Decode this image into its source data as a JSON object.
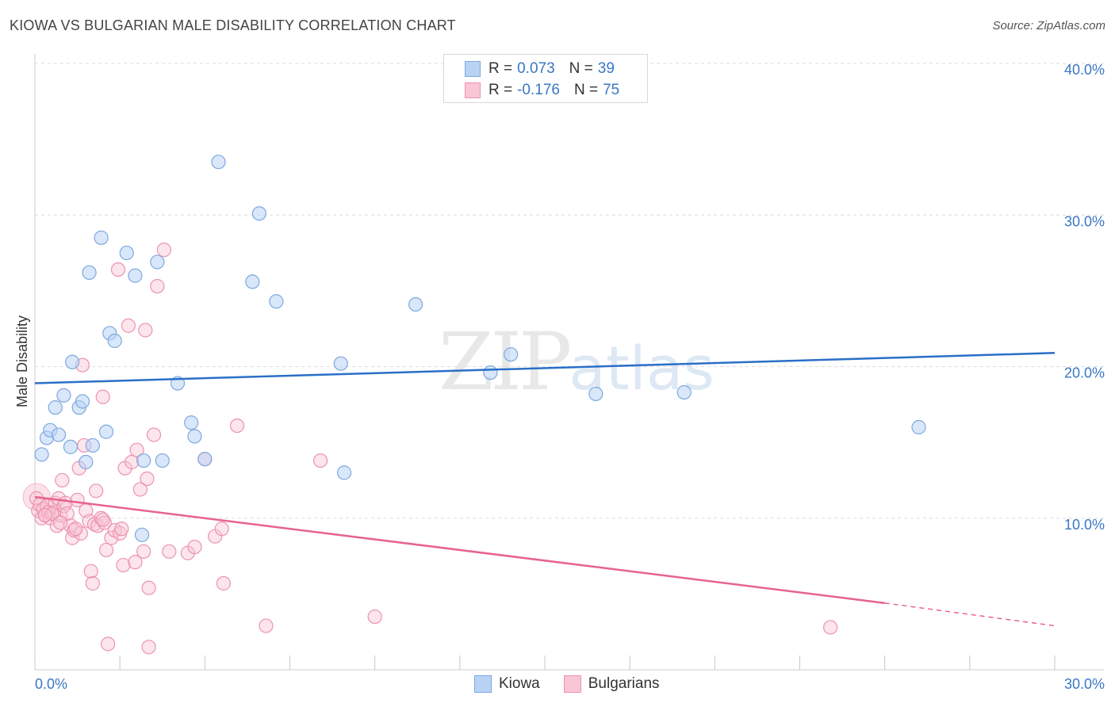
{
  "header": {
    "title": "KIOWA VS BULGARIAN MALE DISABILITY CORRELATION CHART",
    "source": "Source: ZipAtlas.com"
  },
  "watermark": {
    "zip": "ZIP",
    "atlas": "atlas"
  },
  "legend": {
    "rows": [
      {
        "r_label": "R = ",
        "r_value": "0.073",
        "n_label": "N = ",
        "n_value": "39"
      },
      {
        "r_label": "R = ",
        "r_value": "-0.176",
        "n_label": "N = ",
        "n_value": "75"
      }
    ]
  },
  "bottom_legend": {
    "kiowa": "Kiowa",
    "bulgarians": "Bulgarians"
  },
  "colors": {
    "kiowa_fill": "#b9d3f5",
    "kiowa_stroke": "#7ea8de",
    "kiowa_line": "#2a6fc8",
    "bulg_fill": "#f8c6d4",
    "bulg_stroke": "#ec93b0",
    "bulg_line": "#e8638e",
    "tick_text": "#3a77c4",
    "grid": "#dcdcdc"
  },
  "chart_data": {
    "type": "scatter",
    "title": "KIOWA VS BULGARIAN MALE DISABILITY CORRELATION CHART",
    "xlabel": "",
    "ylabel": "Male Disability",
    "xlim": [
      0,
      30
    ],
    "ylim": [
      0,
      40
    ],
    "x_tick_labels": [
      "0.0%",
      "30.0%"
    ],
    "y_ticks": [
      10,
      20,
      30,
      40
    ],
    "y_tick_labels": [
      "10.0%",
      "20.0%",
      "30.0%",
      "40.0%"
    ],
    "series": [
      {
        "name": "Kiowa",
        "r": 0.073,
        "n": 39,
        "trend": {
          "x": [
            0,
            30
          ],
          "y": [
            18.9,
            20.9
          ]
        },
        "points": [
          [
            0.2,
            14.2
          ],
          [
            0.35,
            15.3
          ],
          [
            0.45,
            15.8
          ],
          [
            0.6,
            17.3
          ],
          [
            0.7,
            15.5
          ],
          [
            0.85,
            18.1
          ],
          [
            1.05,
            14.7
          ],
          [
            1.1,
            20.3
          ],
          [
            1.3,
            17.3
          ],
          [
            1.4,
            17.7
          ],
          [
            1.5,
            13.7
          ],
          [
            1.7,
            14.8
          ],
          [
            1.6,
            26.2
          ],
          [
            1.95,
            28.5
          ],
          [
            2.1,
            15.7
          ],
          [
            2.2,
            22.2
          ],
          [
            2.35,
            21.7
          ],
          [
            2.7,
            27.5
          ],
          [
            2.95,
            26.0
          ],
          [
            3.15,
            8.9
          ],
          [
            3.2,
            13.8
          ],
          [
            3.6,
            26.9
          ],
          [
            3.75,
            13.8
          ],
          [
            4.2,
            18.9
          ],
          [
            4.6,
            16.3
          ],
          [
            4.7,
            15.4
          ],
          [
            5.0,
            13.9
          ],
          [
            5.4,
            33.5
          ],
          [
            6.4,
            25.6
          ],
          [
            6.6,
            30.1
          ],
          [
            7.1,
            24.3
          ],
          [
            9.0,
            20.2
          ],
          [
            9.1,
            13.0
          ],
          [
            11.2,
            24.1
          ],
          [
            13.4,
            19.6
          ],
          [
            14.0,
            20.8
          ],
          [
            16.5,
            18.2
          ],
          [
            19.1,
            18.3
          ],
          [
            26.0,
            16.0
          ]
        ]
      },
      {
        "name": "Bulgarians",
        "r": -0.176,
        "n": 75,
        "trend": {
          "x": [
            0,
            25
          ],
          "y": [
            11.4,
            4.4
          ]
        },
        "trend_dashed": {
          "x": [
            25,
            30
          ],
          "y": [
            4.4,
            2.9
          ]
        },
        "points": [
          [
            0.05,
            11.3
          ],
          [
            0.1,
            10.5
          ],
          [
            0.15,
            10.9
          ],
          [
            0.2,
            10.0
          ],
          [
            0.25,
            10.6
          ],
          [
            0.3,
            10.2
          ],
          [
            0.35,
            10.8
          ],
          [
            0.4,
            10.4
          ],
          [
            0.45,
            10.0
          ],
          [
            0.55,
            10.4
          ],
          [
            0.6,
            11.0
          ],
          [
            0.65,
            9.5
          ],
          [
            0.7,
            11.3
          ],
          [
            0.75,
            10.2
          ],
          [
            0.8,
            12.5
          ],
          [
            0.85,
            10.8
          ],
          [
            0.9,
            11.0
          ],
          [
            0.95,
            10.3
          ],
          [
            1.05,
            9.5
          ],
          [
            1.1,
            8.7
          ],
          [
            1.15,
            9.2
          ],
          [
            1.25,
            11.2
          ],
          [
            1.3,
            13.3
          ],
          [
            1.35,
            9.0
          ],
          [
            1.4,
            20.1
          ],
          [
            1.45,
            14.8
          ],
          [
            1.5,
            10.5
          ],
          [
            1.6,
            9.8
          ],
          [
            1.65,
            6.5
          ],
          [
            1.75,
            9.6
          ],
          [
            1.8,
            11.8
          ],
          [
            1.85,
            9.5
          ],
          [
            1.95,
            10.0
          ],
          [
            2.0,
            18.0
          ],
          [
            2.05,
            9.7
          ],
          [
            2.1,
            7.9
          ],
          [
            2.15,
            1.7
          ],
          [
            2.25,
            8.7
          ],
          [
            2.35,
            9.2
          ],
          [
            2.45,
            26.4
          ],
          [
            2.5,
            9.0
          ],
          [
            2.55,
            9.3
          ],
          [
            2.6,
            6.9
          ],
          [
            2.65,
            13.3
          ],
          [
            2.75,
            22.7
          ],
          [
            2.85,
            13.7
          ],
          [
            2.95,
            7.1
          ],
          [
            3.0,
            14.5
          ],
          [
            3.1,
            11.9
          ],
          [
            3.2,
            7.8
          ],
          [
            3.25,
            22.4
          ],
          [
            3.3,
            12.6
          ],
          [
            3.35,
            5.4
          ],
          [
            3.5,
            15.5
          ],
          [
            3.6,
            25.3
          ],
          [
            3.8,
            27.7
          ],
          [
            3.95,
            7.8
          ],
          [
            4.5,
            7.7
          ],
          [
            4.7,
            8.1
          ],
          [
            5.0,
            13.9
          ],
          [
            5.3,
            8.8
          ],
          [
            5.5,
            9.3
          ],
          [
            5.55,
            5.7
          ],
          [
            5.95,
            16.1
          ],
          [
            6.8,
            2.9
          ],
          [
            8.4,
            13.8
          ],
          [
            10.0,
            3.5
          ],
          [
            23.4,
            2.8
          ],
          [
            1.7,
            5.7
          ],
          [
            3.35,
            1.5
          ],
          [
            0.5,
            10.3
          ],
          [
            0.3,
            10.2
          ],
          [
            0.75,
            9.7
          ],
          [
            1.2,
            9.3
          ],
          [
            2.0,
            9.9
          ]
        ]
      }
    ]
  }
}
